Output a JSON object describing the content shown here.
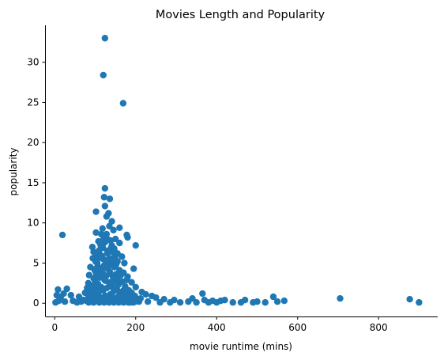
{
  "chart_data": {
    "type": "scatter",
    "title": "Movies Length and Popularity",
    "xlabel": "movie runtime (mins)",
    "ylabel": "popularity",
    "xlim": [
      -23,
      946
    ],
    "ylim": [
      -1.65,
      34.6
    ],
    "xticks": [
      0,
      200,
      400,
      600,
      800
    ],
    "yticks": [
      0,
      5,
      10,
      15,
      20,
      25,
      30
    ],
    "xtick_labels": [
      "0",
      "200",
      "400",
      "600",
      "800"
    ],
    "ytick_labels": [
      "0",
      "5",
      "10",
      "15",
      "20",
      "25",
      "30"
    ],
    "grid": false,
    "spines": "left-bottom",
    "color": "#1f77b4",
    "points": [
      {
        "x": 124,
        "y": 33.0
      },
      {
        "x": 120,
        "y": 28.4
      },
      {
        "x": 169,
        "y": 24.9
      },
      {
        "x": 124,
        "y": 14.3
      },
      {
        "x": 122,
        "y": 13.2
      },
      {
        "x": 136,
        "y": 13.0
      },
      {
        "x": 124,
        "y": 12.1
      },
      {
        "x": 102,
        "y": 11.4
      },
      {
        "x": 133,
        "y": 11.2
      },
      {
        "x": 128,
        "y": 10.8
      },
      {
        "x": 141,
        "y": 10.2
      },
      {
        "x": 135,
        "y": 9.6
      },
      {
        "x": 118,
        "y": 9.3
      },
      {
        "x": 160,
        "y": 9.4
      },
      {
        "x": 145,
        "y": 9.1
      },
      {
        "x": 19,
        "y": 8.5
      },
      {
        "x": 102,
        "y": 8.8
      },
      {
        "x": 115,
        "y": 8.6
      },
      {
        "x": 178,
        "y": 8.5
      },
      {
        "x": 180,
        "y": 8.2
      },
      {
        "x": 126,
        "y": 8.4
      },
      {
        "x": 150,
        "y": 8.0
      },
      {
        "x": 108,
        "y": 7.7
      },
      {
        "x": 138,
        "y": 7.8
      },
      {
        "x": 160,
        "y": 7.5
      },
      {
        "x": 200,
        "y": 7.2
      },
      {
        "x": 93,
        "y": 7.0
      },
      {
        "x": 118,
        "y": 7.1
      },
      {
        "x": 147,
        "y": 6.8
      },
      {
        "x": 96,
        "y": 6.4
      },
      {
        "x": 130,
        "y": 6.5
      },
      {
        "x": 112,
        "y": 6.0
      },
      {
        "x": 155,
        "y": 6.2
      },
      {
        "x": 166,
        "y": 5.8
      },
      {
        "x": 94,
        "y": 5.6
      },
      {
        "x": 120,
        "y": 5.5
      },
      {
        "x": 140,
        "y": 5.3
      },
      {
        "x": 105,
        "y": 5.0
      },
      {
        "x": 172,
        "y": 5.0
      },
      {
        "x": 130,
        "y": 4.9
      },
      {
        "x": 150,
        "y": 4.6
      },
      {
        "x": 88,
        "y": 4.5
      },
      {
        "x": 118,
        "y": 4.4
      },
      {
        "x": 195,
        "y": 4.3
      },
      {
        "x": 100,
        "y": 4.0
      },
      {
        "x": 160,
        "y": 3.9
      },
      {
        "x": 135,
        "y": 3.7
      },
      {
        "x": 85,
        "y": 3.5
      },
      {
        "x": 112,
        "y": 3.4
      },
      {
        "x": 180,
        "y": 3.3
      },
      {
        "x": 145,
        "y": 3.1
      },
      {
        "x": 98,
        "y": 3.0
      },
      {
        "x": 125,
        "y": 2.8
      },
      {
        "x": 190,
        "y": 2.6
      },
      {
        "x": 83,
        "y": 2.5
      },
      {
        "x": 155,
        "y": 2.4
      },
      {
        "x": 105,
        "y": 2.2
      },
      {
        "x": 200,
        "y": 2.0
      },
      {
        "x": 138,
        "y": 2.1
      },
      {
        "x": 80,
        "y": 1.9
      },
      {
        "x": 30,
        "y": 1.8
      },
      {
        "x": 8,
        "y": 1.7
      },
      {
        "x": 115,
        "y": 1.7
      },
      {
        "x": 170,
        "y": 1.6
      },
      {
        "x": 215,
        "y": 1.4
      },
      {
        "x": 75,
        "y": 1.3
      },
      {
        "x": 22,
        "y": 1.2
      },
      {
        "x": 225,
        "y": 1.1
      },
      {
        "x": 5,
        "y": 1.0
      },
      {
        "x": 40,
        "y": 1.0
      },
      {
        "x": 240,
        "y": 0.9
      },
      {
        "x": 95,
        "y": 1.0
      },
      {
        "x": 15,
        "y": 0.8
      },
      {
        "x": 60,
        "y": 0.8
      },
      {
        "x": 250,
        "y": 0.7
      },
      {
        "x": 270,
        "y": 0.5
      },
      {
        "x": 295,
        "y": 0.4
      },
      {
        "x": 340,
        "y": 0.6
      },
      {
        "x": 365,
        "y": 1.2
      },
      {
        "x": 370,
        "y": 0.4
      },
      {
        "x": 390,
        "y": 0.3
      },
      {
        "x": 410,
        "y": 0.3
      },
      {
        "x": 420,
        "y": 0.4
      },
      {
        "x": 470,
        "y": 0.4
      },
      {
        "x": 500,
        "y": 0.2
      },
      {
        "x": 540,
        "y": 0.8
      },
      {
        "x": 550,
        "y": 0.2
      },
      {
        "x": 567,
        "y": 0.3
      },
      {
        "x": 705,
        "y": 0.6
      },
      {
        "x": 877,
        "y": 0.5
      },
      {
        "x": 900,
        "y": 0.1
      },
      {
        "x": 2,
        "y": 0.1
      },
      {
        "x": 10,
        "y": 0.3
      },
      {
        "x": 25,
        "y": 0.2
      },
      {
        "x": 45,
        "y": 0.3
      },
      {
        "x": 55,
        "y": 0.1
      },
      {
        "x": 65,
        "y": 0.2
      },
      {
        "x": 70,
        "y": 0.4
      },
      {
        "x": 230,
        "y": 0.2
      },
      {
        "x": 260,
        "y": 0.1
      },
      {
        "x": 285,
        "y": 0.1
      },
      {
        "x": 310,
        "y": 0.1
      },
      {
        "x": 330,
        "y": 0.2
      },
      {
        "x": 350,
        "y": 0.1
      },
      {
        "x": 380,
        "y": 0.1
      },
      {
        "x": 400,
        "y": 0.1
      },
      {
        "x": 440,
        "y": 0.1
      },
      {
        "x": 460,
        "y": 0.1
      },
      {
        "x": 490,
        "y": 0.1
      },
      {
        "x": 520,
        "y": 0.1
      }
    ],
    "dense_cluster": {
      "x_range": [
        70,
        210
      ],
      "y_max_at_center": 9.5,
      "note_peak_x": 125,
      "points": [
        {
          "x": 78,
          "y": 0.3
        },
        {
          "x": 82,
          "y": 0.6
        },
        {
          "x": 86,
          "y": 1.0
        },
        {
          "x": 88,
          "y": 0.2
        },
        {
          "x": 90,
          "y": 1.5
        },
        {
          "x": 92,
          "y": 0.8
        },
        {
          "x": 94,
          "y": 2.2
        },
        {
          "x": 95,
          "y": 0.4
        },
        {
          "x": 96,
          "y": 3.1
        },
        {
          "x": 97,
          "y": 1.2
        },
        {
          "x": 98,
          "y": 4.2
        },
        {
          "x": 99,
          "y": 0.6
        },
        {
          "x": 100,
          "y": 2.7
        },
        {
          "x": 101,
          "y": 5.2
        },
        {
          "x": 102,
          "y": 1.8
        },
        {
          "x": 103,
          "y": 3.6
        },
        {
          "x": 104,
          "y": 6.0
        },
        {
          "x": 105,
          "y": 0.9
        },
        {
          "x": 106,
          "y": 4.6
        },
        {
          "x": 107,
          "y": 2.4
        },
        {
          "x": 108,
          "y": 5.6
        },
        {
          "x": 109,
          "y": 1.4
        },
        {
          "x": 110,
          "y": 6.6
        },
        {
          "x": 111,
          "y": 3.2
        },
        {
          "x": 112,
          "y": 0.5
        },
        {
          "x": 113,
          "y": 7.3
        },
        {
          "x": 114,
          "y": 4.1
        },
        {
          "x": 115,
          "y": 2.0
        },
        {
          "x": 116,
          "y": 5.9
        },
        {
          "x": 117,
          "y": 0.7
        },
        {
          "x": 118,
          "y": 3.8
        },
        {
          "x": 119,
          "y": 6.9
        },
        {
          "x": 120,
          "y": 1.6
        },
        {
          "x": 121,
          "y": 8.1
        },
        {
          "x": 122,
          "y": 4.7
        },
        {
          "x": 123,
          "y": 2.9
        },
        {
          "x": 124,
          "y": 7.6
        },
        {
          "x": 125,
          "y": 0.9
        },
        {
          "x": 126,
          "y": 5.3
        },
        {
          "x": 127,
          "y": 3.4
        },
        {
          "x": 128,
          "y": 8.6
        },
        {
          "x": 129,
          "y": 1.9
        },
        {
          "x": 130,
          "y": 6.2
        },
        {
          "x": 131,
          "y": 4.3
        },
        {
          "x": 132,
          "y": 0.4
        },
        {
          "x": 133,
          "y": 7.9
        },
        {
          "x": 134,
          "y": 2.6
        },
        {
          "x": 135,
          "y": 5.6
        },
        {
          "x": 136,
          "y": 3.9
        },
        {
          "x": 137,
          "y": 1.1
        },
        {
          "x": 138,
          "y": 6.8
        },
        {
          "x": 139,
          "y": 4.8
        },
        {
          "x": 140,
          "y": 2.2
        },
        {
          "x": 141,
          "y": 7.2
        },
        {
          "x": 142,
          "y": 0.8
        },
        {
          "x": 143,
          "y": 5.1
        },
        {
          "x": 144,
          "y": 3.3
        },
        {
          "x": 145,
          "y": 6.3
        },
        {
          "x": 146,
          "y": 1.5
        },
        {
          "x": 147,
          "y": 4.5
        },
        {
          "x": 148,
          "y": 2.8
        },
        {
          "x": 149,
          "y": 5.8
        },
        {
          "x": 150,
          "y": 0.6
        },
        {
          "x": 151,
          "y": 3.6
        },
        {
          "x": 152,
          "y": 4.9
        },
        {
          "x": 153,
          "y": 1.8
        },
        {
          "x": 154,
          "y": 3.0
        },
        {
          "x": 155,
          "y": 5.2
        },
        {
          "x": 157,
          "y": 2.3
        },
        {
          "x": 158,
          "y": 0.9
        },
        {
          "x": 160,
          "y": 4.1
        },
        {
          "x": 161,
          "y": 1.4
        },
        {
          "x": 163,
          "y": 3.5
        },
        {
          "x": 164,
          "y": 0.5
        },
        {
          "x": 166,
          "y": 2.7
        },
        {
          "x": 168,
          "y": 1.2
        },
        {
          "x": 170,
          "y": 3.8
        },
        {
          "x": 172,
          "y": 0.7
        },
        {
          "x": 174,
          "y": 2.1
        },
        {
          "x": 176,
          "y": 1.0
        },
        {
          "x": 178,
          "y": 2.9
        },
        {
          "x": 180,
          "y": 0.4
        },
        {
          "x": 183,
          "y": 1.6
        },
        {
          "x": 186,
          "y": 0.8
        },
        {
          "x": 190,
          "y": 1.3
        },
        {
          "x": 194,
          "y": 0.3
        },
        {
          "x": 198,
          "y": 0.9
        },
        {
          "x": 203,
          "y": 0.5
        },
        {
          "x": 208,
          "y": 0.2
        },
        {
          "x": 212,
          "y": 0.6
        },
        {
          "x": 84,
          "y": 0.1
        },
        {
          "x": 96,
          "y": 0.1
        },
        {
          "x": 110,
          "y": 0.1
        },
        {
          "x": 122,
          "y": 0.1
        },
        {
          "x": 134,
          "y": 0.1
        },
        {
          "x": 146,
          "y": 0.1
        },
        {
          "x": 158,
          "y": 0.1
        },
        {
          "x": 170,
          "y": 0.1
        },
        {
          "x": 182,
          "y": 0.1
        },
        {
          "x": 194,
          "y": 0.1
        },
        {
          "x": 90,
          "y": 0.4
        },
        {
          "x": 102,
          "y": 0.3
        },
        {
          "x": 114,
          "y": 0.2
        },
        {
          "x": 126,
          "y": 0.3
        },
        {
          "x": 138,
          "y": 0.4
        },
        {
          "x": 150,
          "y": 0.2
        },
        {
          "x": 162,
          "y": 0.3
        },
        {
          "x": 174,
          "y": 0.2
        },
        {
          "x": 186,
          "y": 0.1
        },
        {
          "x": 198,
          "y": 0.2
        }
      ]
    }
  }
}
